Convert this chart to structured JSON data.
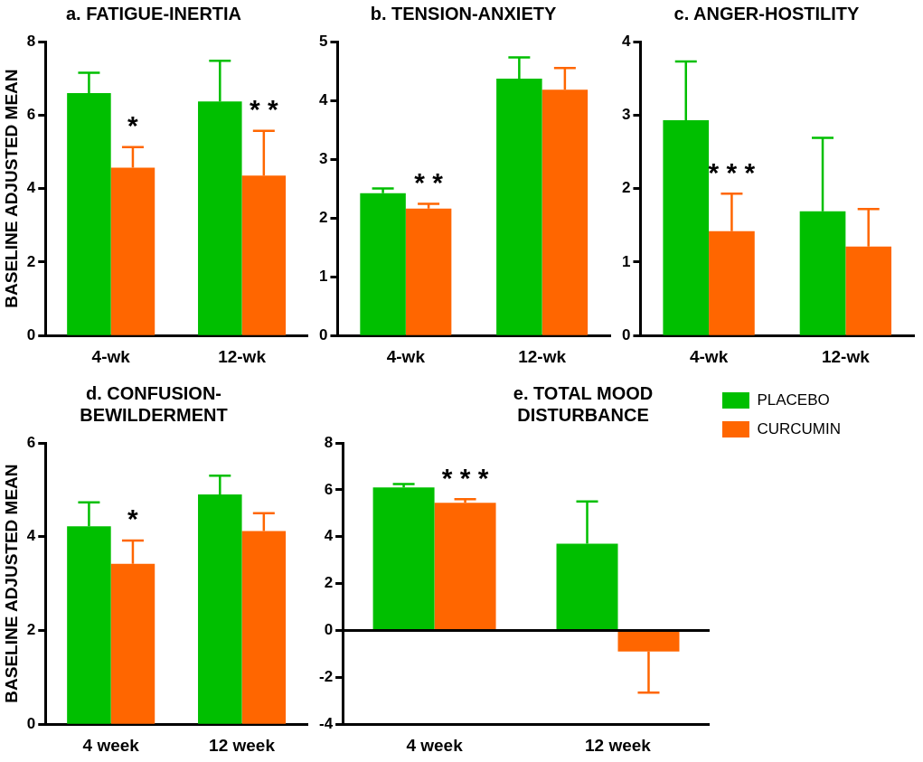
{
  "chart_data": [
    {
      "type": "bar",
      "title": "a. FATIGUE-INERTIA",
      "ylabel": "BASELINE ADJUSTED MEAN",
      "categories": [
        "4-wk",
        "12-wk"
      ],
      "ylim": [
        0,
        8
      ],
      "yticks": [
        0,
        2,
        4,
        6,
        8
      ],
      "grid": false,
      "legend": false,
      "series": [
        {
          "color": "#00bf00",
          "values": [
            6.6,
            6.37
          ],
          "errors": [
            [
              6.6,
              7.15
            ],
            [
              6.37,
              7.48
            ]
          ]
        },
        {
          "color": "#ff6600",
          "values": [
            4.57,
            4.35
          ],
          "errors": [
            [
              4.57,
              5.13
            ],
            [
              4.35,
              5.57
            ]
          ]
        }
      ],
      "annotations": [
        {
          "text": "*",
          "x": "4-wk",
          "y": 5.13
        },
        {
          "text": "* *",
          "x": "12-wk",
          "y": 5.57
        }
      ]
    },
    {
      "type": "bar",
      "title": "b. TENSION-ANXIETY",
      "categories": [
        "4-wk",
        "12-wk"
      ],
      "ylim": [
        0,
        5
      ],
      "yticks": [
        0,
        1,
        2,
        3,
        4,
        5
      ],
      "grid": false,
      "legend": false,
      "series": [
        {
          "color": "#00bf00",
          "values": [
            2.42,
            4.37
          ],
          "errors": [
            [
              2.42,
              2.5
            ],
            [
              4.37,
              4.73
            ]
          ]
        },
        {
          "color": "#ff6600",
          "values": [
            2.16,
            4.18
          ],
          "errors": [
            [
              2.16,
              2.24
            ],
            [
              4.18,
              4.55
            ]
          ]
        }
      ],
      "annotations": [
        {
          "text": "* *",
          "x": "4-wk",
          "y": 2.24
        }
      ]
    },
    {
      "type": "bar",
      "title": "c. ANGER-HOSTILITY",
      "categories": [
        "4-wk",
        "12-wk"
      ],
      "ylim": [
        0,
        4
      ],
      "yticks": [
        0,
        1,
        2,
        3,
        4
      ],
      "grid": false,
      "legend": false,
      "series": [
        {
          "color": "#00bf00",
          "values": [
            2.93,
            1.69
          ],
          "errors": [
            [
              2.93,
              3.73
            ],
            [
              1.69,
              2.69
            ]
          ]
        },
        {
          "color": "#ff6600",
          "values": [
            1.42,
            1.21
          ],
          "errors": [
            [
              1.42,
              1.93
            ],
            [
              1.21,
              1.72
            ]
          ]
        }
      ],
      "annotations": [
        {
          "text": "* * *",
          "x": "4-wk",
          "y": 1.93
        }
      ]
    },
    {
      "type": "bar",
      "title": "d. CONFUSION-BEWILDERMENT",
      "ylabel": "BASELINE ADJUSTED MEAN",
      "categories": [
        "4 week",
        "12 week"
      ],
      "ylim": [
        0,
        6
      ],
      "yticks": [
        0,
        2,
        4,
        6
      ],
      "grid": false,
      "legend": false,
      "series": [
        {
          "color": "#00bf00",
          "values": [
            4.22,
            4.9
          ],
          "errors": [
            [
              4.22,
              4.73
            ],
            [
              4.9,
              5.3
            ]
          ]
        },
        {
          "color": "#ff6600",
          "values": [
            3.42,
            4.12
          ],
          "errors": [
            [
              3.42,
              3.92
            ],
            [
              4.12,
              4.5
            ]
          ]
        }
      ],
      "annotations": [
        {
          "text": "*",
          "x": "4 week",
          "y": 3.92
        }
      ]
    },
    {
      "type": "bar",
      "title": "e. TOTAL MOOD DISTURBANCE",
      "categories": [
        "4 week",
        "12 week"
      ],
      "ylim": [
        -4,
        8
      ],
      "yticks": [
        -4,
        -2,
        0,
        2,
        4,
        6,
        8
      ],
      "grid": false,
      "legend": "right",
      "series": [
        {
          "name": "PLACEBO",
          "color": "#00bf00",
          "values": [
            6.1,
            3.7
          ],
          "errors": [
            [
              6.1,
              6.25
            ],
            [
              3.7,
              5.5
            ]
          ]
        },
        {
          "name": "CURCUMIN",
          "color": "#ff6600",
          "values": [
            5.45,
            -0.9
          ],
          "errors": [
            [
              5.45,
              5.6
            ],
            [
              -2.65,
              -0.9
            ]
          ]
        }
      ],
      "ref_lines": [
        {
          "axis": "y",
          "value": 0
        }
      ],
      "annotations": [
        {
          "text": "* * *",
          "x": "4 week",
          "y": 5.6
        }
      ]
    }
  ]
}
